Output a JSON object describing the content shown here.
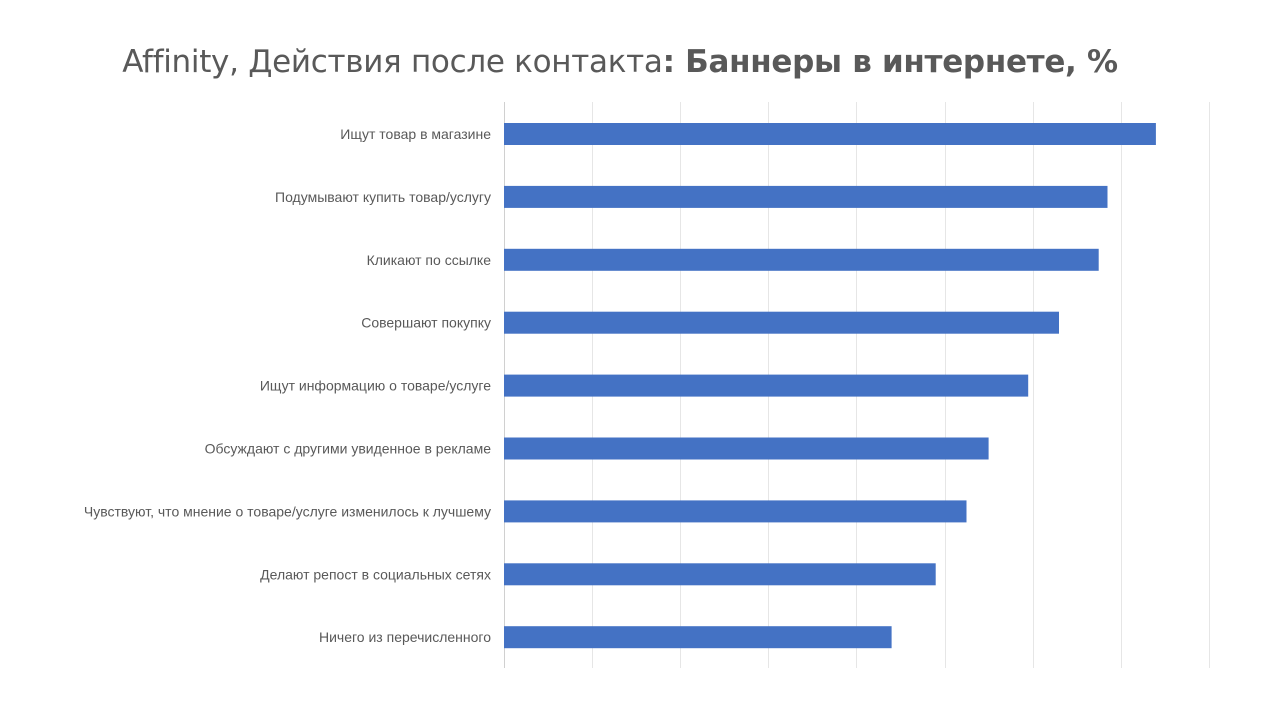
{
  "title": {
    "regular": "Affinity, Действия после контакта",
    "bold": ": Баннеры в интернете, %"
  },
  "chart_data": {
    "type": "bar",
    "orientation": "horizontal",
    "categories": [
      "Ищут товар в магазине",
      "Подумывают купить товар/услугу",
      "Кликают по ссылке",
      "Совершают покупку",
      "Ищут информацию о товаре/услуге",
      "Обсуждают с другими увиденное в рекламе",
      "Чувствуют, что мнение о товаре/услуге изменилось к лучшему",
      "Делают репост в социальных сетях",
      "Ничего из перечисленного"
    ],
    "values": [
      148,
      137,
      135,
      126,
      119,
      110,
      105,
      98,
      88
    ],
    "xlim": [
      0,
      160
    ],
    "grid": true,
    "bar_color": "#4472C4"
  }
}
